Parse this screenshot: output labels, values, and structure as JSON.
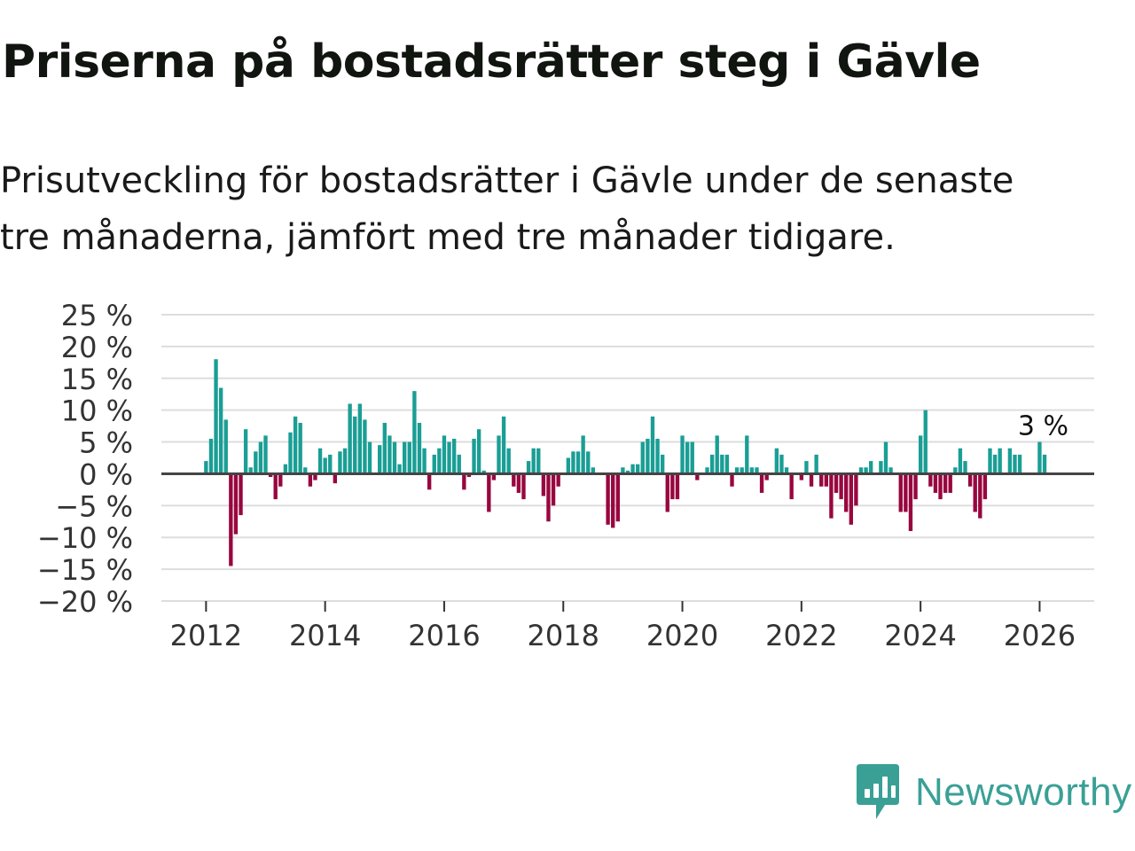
{
  "title": "Priserna på bostadsrätter steg i Gävle",
  "subtitle": {
    "line1": "Prisutveckling för bostadsrätter i Gävle under de senaste",
    "line2": "tre månaderna, jämfört med tre månader tidigare."
  },
  "brand": {
    "name": "Newsworthy"
  },
  "colors": {
    "positive": "#1a9e95",
    "negative": "#98063f",
    "grid": "#dddddd",
    "zero_line": "#444444",
    "brand": "#3aa096"
  },
  "chart_data": {
    "type": "bar",
    "title": "Priserna på bostadsrätter steg i Gävle",
    "xlabel": "",
    "ylabel": "",
    "unit": "%",
    "ylim": [
      -20,
      25
    ],
    "y_ticks": [
      {
        "value": 25,
        "label": "25 %"
      },
      {
        "value": 20,
        "label": "20 %"
      },
      {
        "value": 15,
        "label": "15 %"
      },
      {
        "value": 10,
        "label": "10 %"
      },
      {
        "value": 5,
        "label": "5 %"
      },
      {
        "value": 0,
        "label": "0 %"
      },
      {
        "value": -5,
        "label": "−5 %"
      },
      {
        "value": -10,
        "label": "−10 %"
      },
      {
        "value": -15,
        "label": "−15 %"
      },
      {
        "value": -20,
        "label": "−20 %"
      }
    ],
    "x_ticks": [
      {
        "month": 0,
        "label": "2012"
      },
      {
        "month": 24,
        "label": "2014"
      },
      {
        "month": 48,
        "label": "2016"
      },
      {
        "month": 72,
        "label": "2018"
      },
      {
        "month": 96,
        "label": "2020"
      },
      {
        "month": 120,
        "label": "2022"
      },
      {
        "month": 144,
        "label": "2024"
      },
      {
        "month": 168,
        "label": "2026"
      }
    ],
    "x_start": "2012-01",
    "x_range_months": [
      -9,
      179
    ],
    "grid": true,
    "last_label": "3 %",
    "values": [
      2,
      5.5,
      18,
      13.5,
      8.5,
      -14.5,
      -9.5,
      -6.5,
      7,
      1,
      3.5,
      5,
      6,
      -0.5,
      -4,
      -2,
      1.5,
      6.5,
      9,
      8,
      1,
      -2,
      -1,
      4,
      2.5,
      3,
      -1.5,
      3.5,
      4,
      11,
      9,
      11,
      8.5,
      5,
      0,
      4.5,
      8,
      6,
      5,
      1.5,
      5,
      5,
      13,
      8,
      4,
      -2.5,
      3,
      4,
      6,
      5,
      5.5,
      3,
      -2.5,
      -0.5,
      5.5,
      7,
      0.5,
      -6,
      -1,
      6,
      9,
      4,
      -2,
      -3,
      -4,
      2,
      4,
      4,
      -3.5,
      -7.5,
      -5,
      -2,
      0,
      2.5,
      3.5,
      3.5,
      6,
      3.5,
      1,
      0,
      0,
      -8,
      -8.5,
      -7.5,
      1,
      0.5,
      1.5,
      1.5,
      5,
      5.5,
      9,
      5.5,
      3,
      -6,
      -4,
      -4,
      6,
      5,
      5,
      -1,
      0,
      1,
      3,
      6,
      3,
      3,
      -2,
      1,
      1,
      6,
      1,
      1,
      -3,
      -1,
      0,
      4,
      3,
      1,
      -4,
      0,
      -1,
      2,
      -2,
      3,
      -2,
      -2,
      -7,
      -3,
      -4,
      -6,
      -8,
      -5,
      1,
      1,
      2,
      0,
      2,
      5,
      1,
      0,
      -6,
      -6,
      -9,
      -4,
      6,
      10,
      -2,
      -3,
      -4,
      -3,
      -3,
      1,
      4,
      2,
      -2,
      -6,
      -7,
      -4,
      4,
      3,
      4,
      0,
      4,
      3,
      3,
      0,
      0,
      0,
      5,
      3
    ]
  }
}
